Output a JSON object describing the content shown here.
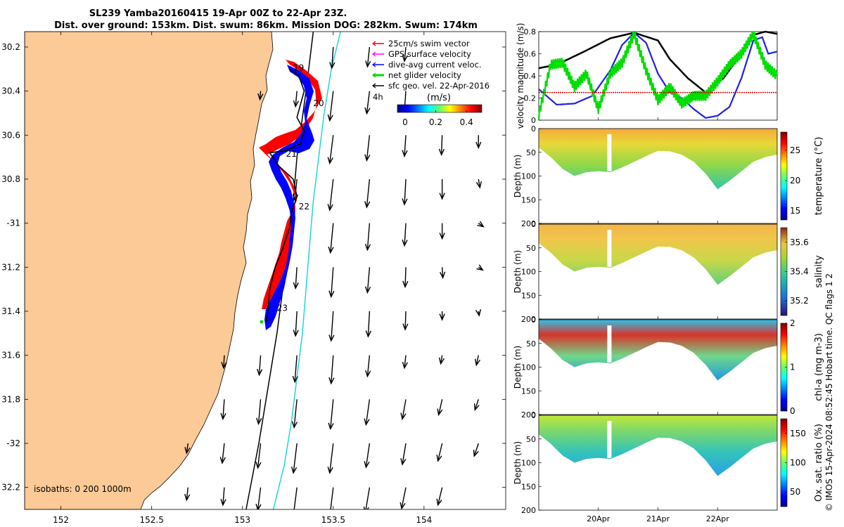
{
  "chart_data": {
    "type": "map_with_timeseries",
    "title_line1": "SL239 Yamba20160415 19-Apr 00Z to 22-Apr 23Z.",
    "title_line2": "Dist. over ground: 153km. Dist. swum: 86km. Mission DOG: 282km. Swum: 174km",
    "map": {
      "lon_range": [
        151.8,
        154.45
      ],
      "lat_range": [
        -32.3,
        -30.13
      ],
      "lon_ticks": [
        152,
        152.5,
        153,
        153.5,
        154
      ],
      "lon_tick_labels": [
        "152",
        "152.5",
        "153",
        "153.5",
        "154"
      ],
      "lat_ticks": [
        -30.2,
        -30.4,
        -30.6,
        -30.8,
        -31,
        -31.2,
        -31.4,
        -31.6,
        -31.8,
        -32,
        -32.2
      ],
      "lat_tick_labels": [
        "30.2",
        "30.4",
        "30.6",
        "30.8",
        "-31",
        "31.2",
        "31.4",
        "31.6",
        "31.8",
        "-32",
        "32.2"
      ],
      "day_labels": [
        {
          "text": "19",
          "lon": 153.28,
          "lat": -30.295
        },
        {
          "text": "20",
          "lon": 153.39,
          "lat": -30.455
        },
        {
          "text": "21",
          "lon": 153.24,
          "lat": -30.685
        },
        {
          "text": "22",
          "lon": 153.31,
          "lat": -30.925
        },
        {
          "text": "23",
          "lon": 153.19,
          "lat": -31.385
        }
      ],
      "isobath_label": "isobaths: 0   200   1000m",
      "isobaths": [
        {
          "name": "200m",
          "color": "#000000",
          "points": [
            [
              153.39,
              -30.13
            ],
            [
              153.35,
              -30.4
            ],
            [
              153.3,
              -30.7
            ],
            [
              153.27,
              -31.0
            ],
            [
              153.19,
              -31.5
            ],
            [
              153.09,
              -32.0
            ],
            [
              153.02,
              -32.3
            ]
          ]
        },
        {
          "name": "1000m",
          "color": "#1fd8d8",
          "points": [
            [
              153.54,
              -30.13
            ],
            [
              153.49,
              -30.3
            ],
            [
              153.45,
              -30.5
            ],
            [
              153.42,
              -30.7
            ],
            [
              153.39,
              -30.9
            ],
            [
              153.37,
              -31.1
            ],
            [
              153.35,
              -31.3
            ],
            [
              153.33,
              -31.5
            ],
            [
              153.3,
              -31.7
            ],
            [
              153.27,
              -31.9
            ],
            [
              153.23,
              -32.1
            ],
            [
              153.17,
              -32.3
            ]
          ]
        }
      ],
      "glider_track": [
        [
          153.26,
          -30.3
        ],
        [
          153.31,
          -30.33
        ],
        [
          153.34,
          -30.4
        ],
        [
          153.32,
          -30.46
        ],
        [
          153.3,
          -30.52
        ],
        [
          153.34,
          -30.58
        ],
        [
          153.32,
          -30.64
        ],
        [
          153.24,
          -30.67
        ],
        [
          153.15,
          -30.68
        ],
        [
          153.2,
          -30.74
        ],
        [
          153.28,
          -30.8
        ],
        [
          153.3,
          -30.88
        ],
        [
          153.27,
          -30.95
        ],
        [
          153.26,
          -31.02
        ],
        [
          153.22,
          -31.12
        ],
        [
          153.18,
          -31.2
        ],
        [
          153.15,
          -31.3
        ],
        [
          153.14,
          -31.4
        ],
        [
          153.13,
          -31.45
        ]
      ],
      "geo_velocity_arrows": [
        {
          "lon": 153.5,
          "lat": -30.2,
          "u": -0.02,
          "v": -0.3
        },
        {
          "lon": 153.7,
          "lat": -30.2,
          "u": -0.03,
          "v": -0.28
        },
        {
          "lon": 153.9,
          "lat": -30.2,
          "u": -0.02,
          "v": -0.2
        },
        {
          "lon": 153.1,
          "lat": -30.4,
          "u": -0.01,
          "v": -0.12
        },
        {
          "lon": 153.3,
          "lat": -30.4,
          "u": -0.02,
          "v": -0.22
        },
        {
          "lon": 153.5,
          "lat": -30.4,
          "u": -0.05,
          "v": -0.42
        },
        {
          "lon": 153.7,
          "lat": -30.4,
          "u": -0.04,
          "v": -0.32
        },
        {
          "lon": 153.9,
          "lat": -30.4,
          "u": -0.02,
          "v": -0.28
        },
        {
          "lon": 153.5,
          "lat": -30.6,
          "u": -0.05,
          "v": -0.4
        },
        {
          "lon": 153.7,
          "lat": -30.6,
          "u": -0.04,
          "v": -0.36
        },
        {
          "lon": 153.9,
          "lat": -30.6,
          "u": -0.02,
          "v": -0.3
        },
        {
          "lon": 154.1,
          "lat": -30.6,
          "u": -0.01,
          "v": -0.28
        },
        {
          "lon": 154.3,
          "lat": -30.6,
          "u": 0.0,
          "v": -0.18
        },
        {
          "lon": 153.3,
          "lat": -30.8,
          "u": -0.03,
          "v": -0.3
        },
        {
          "lon": 153.5,
          "lat": -30.8,
          "u": -0.05,
          "v": -0.44
        },
        {
          "lon": 153.7,
          "lat": -30.8,
          "u": -0.04,
          "v": -0.4
        },
        {
          "lon": 153.9,
          "lat": -30.8,
          "u": -0.02,
          "v": -0.36
        },
        {
          "lon": 154.1,
          "lat": -30.8,
          "u": 0.0,
          "v": -0.28
        },
        {
          "lon": 154.3,
          "lat": -30.8,
          "u": 0.02,
          "v": -0.12
        },
        {
          "lon": 153.5,
          "lat": -31.0,
          "u": -0.04,
          "v": -0.42
        },
        {
          "lon": 153.7,
          "lat": -31.0,
          "u": -0.03,
          "v": -0.38
        },
        {
          "lon": 153.9,
          "lat": -31.0,
          "u": -0.02,
          "v": -0.32
        },
        {
          "lon": 154.1,
          "lat": -31.0,
          "u": 0.0,
          "v": -0.22
        },
        {
          "lon": 154.3,
          "lat": -31.0,
          "u": 0.07,
          "v": -0.05
        },
        {
          "lon": 153.3,
          "lat": -31.2,
          "u": -0.02,
          "v": -0.3
        },
        {
          "lon": 153.5,
          "lat": -31.2,
          "u": -0.03,
          "v": -0.42
        },
        {
          "lon": 153.7,
          "lat": -31.2,
          "u": -0.03,
          "v": -0.36
        },
        {
          "lon": 153.9,
          "lat": -31.2,
          "u": -0.01,
          "v": -0.28
        },
        {
          "lon": 154.1,
          "lat": -31.2,
          "u": 0.01,
          "v": -0.15
        },
        {
          "lon": 154.3,
          "lat": -31.2,
          "u": 0.06,
          "v": -0.04
        },
        {
          "lon": 153.3,
          "lat": -31.4,
          "u": -0.02,
          "v": -0.35
        },
        {
          "lon": 153.5,
          "lat": -31.4,
          "u": -0.03,
          "v": -0.42
        },
        {
          "lon": 153.7,
          "lat": -31.4,
          "u": -0.02,
          "v": -0.36
        },
        {
          "lon": 153.9,
          "lat": -31.4,
          "u": -0.01,
          "v": -0.26
        },
        {
          "lon": 154.1,
          "lat": -31.4,
          "u": 0.0,
          "v": -0.12
        },
        {
          "lon": 154.3,
          "lat": -31.4,
          "u": 0.01,
          "v": -0.06
        },
        {
          "lon": 152.9,
          "lat": -31.6,
          "u": -0.01,
          "v": -0.18
        },
        {
          "lon": 153.1,
          "lat": -31.6,
          "u": -0.02,
          "v": -0.28
        },
        {
          "lon": 153.3,
          "lat": -31.6,
          "u": -0.03,
          "v": -0.38
        },
        {
          "lon": 153.5,
          "lat": -31.6,
          "u": -0.03,
          "v": -0.4
        },
        {
          "lon": 153.7,
          "lat": -31.6,
          "u": -0.03,
          "v": -0.3
        },
        {
          "lon": 153.9,
          "lat": -31.6,
          "u": -0.02,
          "v": -0.18
        },
        {
          "lon": 154.1,
          "lat": -31.6,
          "u": -0.02,
          "v": -0.12
        },
        {
          "lon": 154.3,
          "lat": -31.6,
          "u": -0.03,
          "v": -0.14
        },
        {
          "lon": 152.9,
          "lat": -31.8,
          "u": -0.02,
          "v": -0.28
        },
        {
          "lon": 153.1,
          "lat": -31.8,
          "u": -0.03,
          "v": -0.35
        },
        {
          "lon": 153.3,
          "lat": -31.8,
          "u": -0.04,
          "v": -0.4
        },
        {
          "lon": 153.5,
          "lat": -31.8,
          "u": -0.04,
          "v": -0.42
        },
        {
          "lon": 153.7,
          "lat": -31.8,
          "u": -0.05,
          "v": -0.36
        },
        {
          "lon": 153.9,
          "lat": -31.8,
          "u": -0.05,
          "v": -0.28
        },
        {
          "lon": 154.1,
          "lat": -31.8,
          "u": -0.05,
          "v": -0.22
        },
        {
          "lon": 154.3,
          "lat": -31.8,
          "u": -0.05,
          "v": -0.15
        },
        {
          "lon": 152.7,
          "lat": -32.0,
          "u": -0.02,
          "v": -0.14
        },
        {
          "lon": 152.9,
          "lat": -32.0,
          "u": -0.03,
          "v": -0.28
        },
        {
          "lon": 153.1,
          "lat": -32.0,
          "u": -0.04,
          "v": -0.35
        },
        {
          "lon": 153.3,
          "lat": -32.0,
          "u": -0.05,
          "v": -0.42
        },
        {
          "lon": 153.5,
          "lat": -32.0,
          "u": -0.05,
          "v": -0.42
        },
        {
          "lon": 153.7,
          "lat": -32.0,
          "u": -0.05,
          "v": -0.34
        },
        {
          "lon": 153.9,
          "lat": -32.0,
          "u": -0.05,
          "v": -0.3
        },
        {
          "lon": 154.1,
          "lat": -32.0,
          "u": -0.06,
          "v": -0.25
        },
        {
          "lon": 154.3,
          "lat": -32.0,
          "u": -0.06,
          "v": -0.18
        },
        {
          "lon": 152.7,
          "lat": -32.2,
          "u": -0.02,
          "v": -0.18
        },
        {
          "lon": 152.9,
          "lat": -32.2,
          "u": -0.02,
          "v": -0.25
        },
        {
          "lon": 153.1,
          "lat": -32.2,
          "u": -0.04,
          "v": -0.32
        },
        {
          "lon": 153.3,
          "lat": -32.2,
          "u": -0.05,
          "v": -0.4
        },
        {
          "lon": 153.5,
          "lat": -32.2,
          "u": -0.05,
          "v": -0.42
        },
        {
          "lon": 153.7,
          "lat": -32.2,
          "u": -0.06,
          "v": -0.36
        },
        {
          "lon": 153.9,
          "lat": -32.2,
          "u": -0.06,
          "v": -0.3
        },
        {
          "lon": 154.1,
          "lat": -32.2,
          "u": -0.06,
          "v": -0.25
        }
      ],
      "legend": {
        "entries": [
          {
            "label": "25cm/s swim vector",
            "color": "#ff0000"
          },
          {
            "label": "GPS surface velocity",
            "color": "#ff00ff"
          },
          {
            "label": "dive-avg current veloc.",
            "color": "#0000ff"
          },
          {
            "label": "net glider velocity",
            "color": "#00dd00"
          },
          {
            "label": "sfc geo. vel. 22-Apr-2016",
            "color": "#000000"
          }
        ],
        "age_label": "4h",
        "colorbar_title": "(m/s)",
        "colorbar_ticks": [
          "0",
          "0.2",
          "0.4"
        ],
        "colorbar_range": [
          -0.05,
          0.5
        ]
      }
    },
    "velocity_panel": {
      "ylabel": "velocity magnitude (m/s)",
      "ylim": [
        0,
        0.8
      ],
      "yticks": [
        "0",
        "0.2",
        "0.4",
        "0.6",
        "0.8"
      ],
      "swim_reference": 0.25,
      "series": [
        {
          "name": "net glider speed",
          "color": "#000000",
          "t": [
            0,
            0.3,
            0.8,
            1.2,
            1.6,
            2.0,
            2.2,
            2.5,
            2.8,
            3.1,
            3.4,
            3.6,
            3.8,
            4.0
          ],
          "v": [
            0.47,
            0.5,
            0.63,
            0.74,
            0.79,
            0.72,
            0.55,
            0.38,
            0.25,
            0.38,
            0.6,
            0.77,
            0.8,
            0.78
          ]
        },
        {
          "name": "dive-avg current speed",
          "color": "#2020e0",
          "t": [
            0,
            0.3,
            0.6,
            0.9,
            1.2,
            1.4,
            1.6,
            1.8,
            2.0,
            2.2,
            2.4,
            2.6,
            2.8,
            3.0,
            3.2,
            3.4,
            3.6,
            3.75,
            3.85,
            4.0
          ],
          "v": [
            0.28,
            0.14,
            0.15,
            0.22,
            0.45,
            0.68,
            0.79,
            0.7,
            0.42,
            0.25,
            0.2,
            0.1,
            0.02,
            0.04,
            0.12,
            0.38,
            0.72,
            0.75,
            0.6,
            0.62
          ]
        },
        {
          "name": "surface velocity",
          "color": "#00dd00",
          "t": [
            0,
            0.2,
            0.4,
            0.6,
            0.8,
            1.0,
            1.2,
            1.4,
            1.6,
            1.8,
            2.0,
            2.2,
            2.4,
            2.6,
            2.8,
            3.0,
            3.2,
            3.4,
            3.6,
            3.8,
            4.0
          ],
          "v": [
            0.05,
            0.5,
            0.52,
            0.3,
            0.42,
            0.1,
            0.42,
            0.52,
            0.78,
            0.45,
            0.18,
            0.3,
            0.15,
            0.22,
            0.22,
            0.35,
            0.5,
            0.6,
            0.78,
            0.5,
            0.4
          ]
        }
      ]
    },
    "section_panels": [
      {
        "name": "temperature",
        "cbar_label": "temperature (°C)",
        "cbar_ticks": [
          "15",
          "20",
          "25"
        ],
        "cbar_tick_values": [
          15,
          20,
          25
        ],
        "cbar_range": [
          13.5,
          28
        ]
      },
      {
        "name": "salinity",
        "cbar_label": "salinity",
        "cbar_ticks": [
          "35.2",
          "35.4",
          "35.6"
        ],
        "cbar_tick_values": [
          35.2,
          35.4,
          35.6
        ],
        "cbar_range": [
          35.1,
          35.7
        ]
      },
      {
        "name": "chl-a",
        "cbar_label": "chl-a (mg m-3)",
        "cbar_ticks": [
          "0",
          "1",
          "2"
        ],
        "cbar_tick_values": [
          0,
          1,
          2
        ],
        "cbar_range": [
          0,
          2
        ]
      },
      {
        "name": "oxygen",
        "cbar_label": "Ox. sat. ratio (%)",
        "cbar_ticks": [
          "50",
          "100",
          "150"
        ],
        "cbar_tick_values": [
          50,
          100,
          150
        ],
        "cbar_range": [
          25,
          175
        ]
      }
    ],
    "section_ylabel": "Depth (m)",
    "depth_ticks": [
      "0",
      "50",
      "100",
      "150",
      "200"
    ],
    "depth_range": [
      0,
      200
    ],
    "time_ticks": [
      {
        "label": "20Apr",
        "t": 1.0
      },
      {
        "label": "21Apr",
        "t": 2.0
      },
      {
        "label": "22Apr",
        "t": 3.0
      }
    ],
    "time_range_days": [
      0,
      4
    ],
    "bottom_depth_profile": {
      "t": [
        0,
        0.2,
        0.4,
        0.6,
        0.8,
        1.0,
        1.2,
        1.4,
        1.6,
        1.8,
        2.0,
        2.2,
        2.4,
        2.6,
        2.8,
        3.0,
        3.2,
        3.4,
        3.6,
        3.8,
        4.0
      ],
      "depth": [
        40,
        60,
        85,
        100,
        92,
        90,
        92,
        82,
        70,
        58,
        47,
        48,
        55,
        70,
        95,
        128,
        110,
        90,
        70,
        60,
        55
      ]
    }
  },
  "credit": "© IMOS 15-Apr-2024 08:52:45 Hobart time. QC flags 1  2",
  "colors": {
    "land": "#fcca96",
    "track_red": "#ff0000",
    "track_blue": "#0000ff",
    "isobath_1000": "#1fd8d8"
  }
}
